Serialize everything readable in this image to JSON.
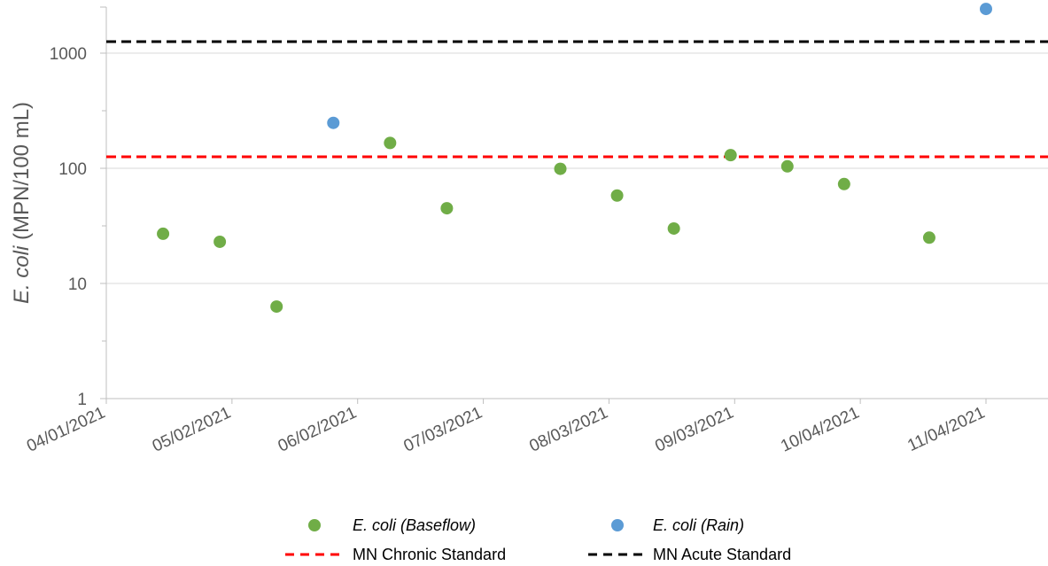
{
  "chart_data": {
    "type": "scatter",
    "ylabel_italic": "E. coli",
    "ylabel_rest": " (MPN/100 mL)",
    "yscale": "log",
    "ylim": [
      1,
      2500
    ],
    "yticks": [
      1,
      10,
      100,
      1000
    ],
    "ytick_labels": [
      "1",
      "10",
      "100",
      "1000"
    ],
    "xlim": [
      "2021-04-01",
      "2021-11-04"
    ],
    "xticks": [
      "2021-04-01",
      "2021-05-02",
      "2021-06-02",
      "2021-07-03",
      "2021-08-03",
      "2021-09-03",
      "2021-10-04",
      "2021-11-04"
    ],
    "xtick_labels": [
      "04/01/2021",
      "05/02/2021",
      "06/02/2021",
      "07/03/2021",
      "08/03/2021",
      "09/03/2021",
      "10/04/2021",
      "11/04/2021"
    ],
    "grid": true,
    "legend_position": "bottom",
    "series": [
      {
        "name": "E. coli (Baseflow)",
        "color": "#70ad47",
        "points": [
          {
            "x": "2021-04-15",
            "y": 27
          },
          {
            "x": "2021-04-29",
            "y": 23
          },
          {
            "x": "2021-05-13",
            "y": 6.3
          },
          {
            "x": "2021-06-10",
            "y": 166
          },
          {
            "x": "2021-06-24",
            "y": 45
          },
          {
            "x": "2021-07-22",
            "y": 99
          },
          {
            "x": "2021-08-05",
            "y": 58
          },
          {
            "x": "2021-08-19",
            "y": 30
          },
          {
            "x": "2021-09-02",
            "y": 130
          },
          {
            "x": "2021-09-16",
            "y": 104
          },
          {
            "x": "2021-09-30",
            "y": 73
          },
          {
            "x": "2021-10-21",
            "y": 25
          }
        ]
      },
      {
        "name": "E. coli (Rain)",
        "color": "#5b9bd5",
        "points": [
          {
            "x": "2021-05-27",
            "y": 248
          },
          {
            "x": "2021-11-04",
            "y": 2420
          }
        ]
      }
    ],
    "reference_lines": [
      {
        "name": "MN Chronic Standard",
        "y": 126,
        "color": "#ff0000",
        "style": "dashed"
      },
      {
        "name": "MN Acute Standard",
        "y": 1260,
        "color": "#000000",
        "style": "dashed"
      }
    ]
  }
}
